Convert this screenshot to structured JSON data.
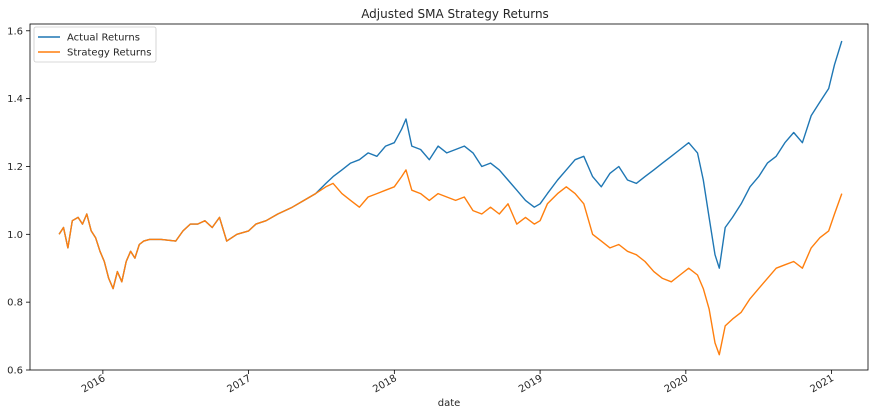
{
  "chart_data": {
    "type": "line",
    "title": "Adjusted SMA Strategy Returns",
    "xlabel": "date",
    "ylabel": "",
    "xlim": [
      2015.5,
      2021.25
    ],
    "ylim": [
      0.6,
      1.62
    ],
    "x_ticks": [
      2016,
      2017,
      2018,
      2019,
      2020,
      2021
    ],
    "x_tick_labels": [
      "2016",
      "2017",
      "2018",
      "2019",
      "2020",
      "2021"
    ],
    "y_ticks": [
      0.6,
      0.8,
      1.0,
      1.2,
      1.4,
      1.6
    ],
    "y_tick_labels": [
      "0.6",
      "0.8",
      "1.0",
      "1.2",
      "1.4",
      "1.6"
    ],
    "legend_position": "top-left",
    "grid": false,
    "series": [
      {
        "name": "Actual Returns",
        "color": "#1f77b4",
        "points": [
          [
            2015.7,
            1.0
          ],
          [
            2015.73,
            1.02
          ],
          [
            2015.76,
            0.96
          ],
          [
            2015.79,
            1.04
          ],
          [
            2015.83,
            1.05
          ],
          [
            2015.86,
            1.03
          ],
          [
            2015.89,
            1.06
          ],
          [
            2015.92,
            1.01
          ],
          [
            2015.95,
            0.99
          ],
          [
            2015.98,
            0.95
          ],
          [
            2016.01,
            0.92
          ],
          [
            2016.04,
            0.87
          ],
          [
            2016.07,
            0.84
          ],
          [
            2016.1,
            0.89
          ],
          [
            2016.13,
            0.86
          ],
          [
            2016.16,
            0.92
          ],
          [
            2016.19,
            0.95
          ],
          [
            2016.22,
            0.93
          ],
          [
            2016.25,
            0.97
          ],
          [
            2016.28,
            0.98
          ],
          [
            2016.32,
            0.985
          ],
          [
            2016.4,
            0.985
          ],
          [
            2016.5,
            0.98
          ],
          [
            2016.55,
            1.01
          ],
          [
            2016.6,
            1.03
          ],
          [
            2016.65,
            1.03
          ],
          [
            2016.7,
            1.04
          ],
          [
            2016.75,
            1.02
          ],
          [
            2016.8,
            1.05
          ],
          [
            2016.85,
            0.98
          ],
          [
            2016.92,
            1.0
          ],
          [
            2017.0,
            1.01
          ],
          [
            2017.05,
            1.03
          ],
          [
            2017.12,
            1.04
          ],
          [
            2017.2,
            1.06
          ],
          [
            2017.3,
            1.08
          ],
          [
            2017.38,
            1.1
          ],
          [
            2017.46,
            1.12
          ],
          [
            2017.53,
            1.15
          ],
          [
            2017.58,
            1.17
          ],
          [
            2017.64,
            1.19
          ],
          [
            2017.7,
            1.21
          ],
          [
            2017.76,
            1.22
          ],
          [
            2017.82,
            1.24
          ],
          [
            2017.88,
            1.23
          ],
          [
            2017.94,
            1.26
          ],
          [
            2018.0,
            1.27
          ],
          [
            2018.05,
            1.31
          ],
          [
            2018.08,
            1.34
          ],
          [
            2018.12,
            1.26
          ],
          [
            2018.18,
            1.25
          ],
          [
            2018.24,
            1.22
          ],
          [
            2018.3,
            1.26
          ],
          [
            2018.36,
            1.24
          ],
          [
            2018.42,
            1.25
          ],
          [
            2018.48,
            1.26
          ],
          [
            2018.54,
            1.24
          ],
          [
            2018.6,
            1.2
          ],
          [
            2018.66,
            1.21
          ],
          [
            2018.72,
            1.19
          ],
          [
            2018.78,
            1.16
          ],
          [
            2018.84,
            1.13
          ],
          [
            2018.9,
            1.1
          ],
          [
            2018.96,
            1.08
          ],
          [
            2019.0,
            1.09
          ],
          [
            2019.05,
            1.12
          ],
          [
            2019.12,
            1.16
          ],
          [
            2019.18,
            1.19
          ],
          [
            2019.24,
            1.22
          ],
          [
            2019.3,
            1.23
          ],
          [
            2019.36,
            1.17
          ],
          [
            2019.42,
            1.14
          ],
          [
            2019.48,
            1.18
          ],
          [
            2019.54,
            1.2
          ],
          [
            2019.6,
            1.16
          ],
          [
            2019.66,
            1.15
          ],
          [
            2019.72,
            1.17
          ],
          [
            2019.78,
            1.19
          ],
          [
            2019.84,
            1.21
          ],
          [
            2019.9,
            1.23
          ],
          [
            2019.96,
            1.25
          ],
          [
            2020.02,
            1.27
          ],
          [
            2020.08,
            1.24
          ],
          [
            2020.12,
            1.16
          ],
          [
            2020.16,
            1.05
          ],
          [
            2020.2,
            0.94
          ],
          [
            2020.23,
            0.9
          ],
          [
            2020.27,
            1.02
          ],
          [
            2020.32,
            1.05
          ],
          [
            2020.38,
            1.09
          ],
          [
            2020.44,
            1.14
          ],
          [
            2020.5,
            1.17
          ],
          [
            2020.56,
            1.21
          ],
          [
            2020.62,
            1.23
          ],
          [
            2020.68,
            1.27
          ],
          [
            2020.74,
            1.3
          ],
          [
            2020.8,
            1.27
          ],
          [
            2020.86,
            1.35
          ],
          [
            2020.92,
            1.39
          ],
          [
            2020.98,
            1.43
          ],
          [
            2021.02,
            1.5
          ],
          [
            2021.07,
            1.57
          ]
        ]
      },
      {
        "name": "Strategy Returns",
        "color": "#ff7f0e",
        "points": [
          [
            2015.7,
            1.0
          ],
          [
            2015.73,
            1.02
          ],
          [
            2015.76,
            0.96
          ],
          [
            2015.79,
            1.04
          ],
          [
            2015.83,
            1.05
          ],
          [
            2015.86,
            1.03
          ],
          [
            2015.89,
            1.06
          ],
          [
            2015.92,
            1.01
          ],
          [
            2015.95,
            0.99
          ],
          [
            2015.98,
            0.95
          ],
          [
            2016.01,
            0.92
          ],
          [
            2016.04,
            0.87
          ],
          [
            2016.07,
            0.84
          ],
          [
            2016.1,
            0.89
          ],
          [
            2016.13,
            0.86
          ],
          [
            2016.16,
            0.92
          ],
          [
            2016.19,
            0.95
          ],
          [
            2016.22,
            0.93
          ],
          [
            2016.25,
            0.97
          ],
          [
            2016.28,
            0.98
          ],
          [
            2016.32,
            0.985
          ],
          [
            2016.4,
            0.985
          ],
          [
            2016.5,
            0.98
          ],
          [
            2016.55,
            1.01
          ],
          [
            2016.6,
            1.03
          ],
          [
            2016.65,
            1.03
          ],
          [
            2016.7,
            1.04
          ],
          [
            2016.75,
            1.02
          ],
          [
            2016.8,
            1.05
          ],
          [
            2016.85,
            0.98
          ],
          [
            2016.92,
            1.0
          ],
          [
            2017.0,
            1.01
          ],
          [
            2017.05,
            1.03
          ],
          [
            2017.12,
            1.04
          ],
          [
            2017.2,
            1.06
          ],
          [
            2017.3,
            1.08
          ],
          [
            2017.38,
            1.1
          ],
          [
            2017.46,
            1.12
          ],
          [
            2017.53,
            1.14
          ],
          [
            2017.58,
            1.15
          ],
          [
            2017.64,
            1.12
          ],
          [
            2017.7,
            1.1
          ],
          [
            2017.76,
            1.08
          ],
          [
            2017.82,
            1.11
          ],
          [
            2017.88,
            1.12
          ],
          [
            2017.94,
            1.13
          ],
          [
            2018.0,
            1.14
          ],
          [
            2018.05,
            1.17
          ],
          [
            2018.08,
            1.19
          ],
          [
            2018.12,
            1.13
          ],
          [
            2018.18,
            1.12
          ],
          [
            2018.24,
            1.1
          ],
          [
            2018.3,
            1.12
          ],
          [
            2018.36,
            1.11
          ],
          [
            2018.42,
            1.1
          ],
          [
            2018.48,
            1.11
          ],
          [
            2018.54,
            1.07
          ],
          [
            2018.6,
            1.06
          ],
          [
            2018.66,
            1.08
          ],
          [
            2018.72,
            1.06
          ],
          [
            2018.78,
            1.09
          ],
          [
            2018.84,
            1.03
          ],
          [
            2018.9,
            1.05
          ],
          [
            2018.96,
            1.03
          ],
          [
            2019.0,
            1.04
          ],
          [
            2019.05,
            1.09
          ],
          [
            2019.12,
            1.12
          ],
          [
            2019.18,
            1.14
          ],
          [
            2019.24,
            1.12
          ],
          [
            2019.3,
            1.09
          ],
          [
            2019.36,
            1.0
          ],
          [
            2019.42,
            0.98
          ],
          [
            2019.48,
            0.96
          ],
          [
            2019.54,
            0.97
          ],
          [
            2019.6,
            0.95
          ],
          [
            2019.66,
            0.94
          ],
          [
            2019.72,
            0.92
          ],
          [
            2019.78,
            0.89
          ],
          [
            2019.84,
            0.87
          ],
          [
            2019.9,
            0.86
          ],
          [
            2019.96,
            0.88
          ],
          [
            2020.02,
            0.9
          ],
          [
            2020.08,
            0.88
          ],
          [
            2020.12,
            0.84
          ],
          [
            2020.16,
            0.78
          ],
          [
            2020.2,
            0.68
          ],
          [
            2020.23,
            0.645
          ],
          [
            2020.27,
            0.73
          ],
          [
            2020.32,
            0.75
          ],
          [
            2020.38,
            0.77
          ],
          [
            2020.44,
            0.81
          ],
          [
            2020.5,
            0.84
          ],
          [
            2020.56,
            0.87
          ],
          [
            2020.62,
            0.9
          ],
          [
            2020.68,
            0.91
          ],
          [
            2020.74,
            0.92
          ],
          [
            2020.8,
            0.9
          ],
          [
            2020.86,
            0.96
          ],
          [
            2020.92,
            0.99
          ],
          [
            2020.98,
            1.01
          ],
          [
            2021.02,
            1.06
          ],
          [
            2021.07,
            1.12
          ]
        ]
      }
    ]
  }
}
